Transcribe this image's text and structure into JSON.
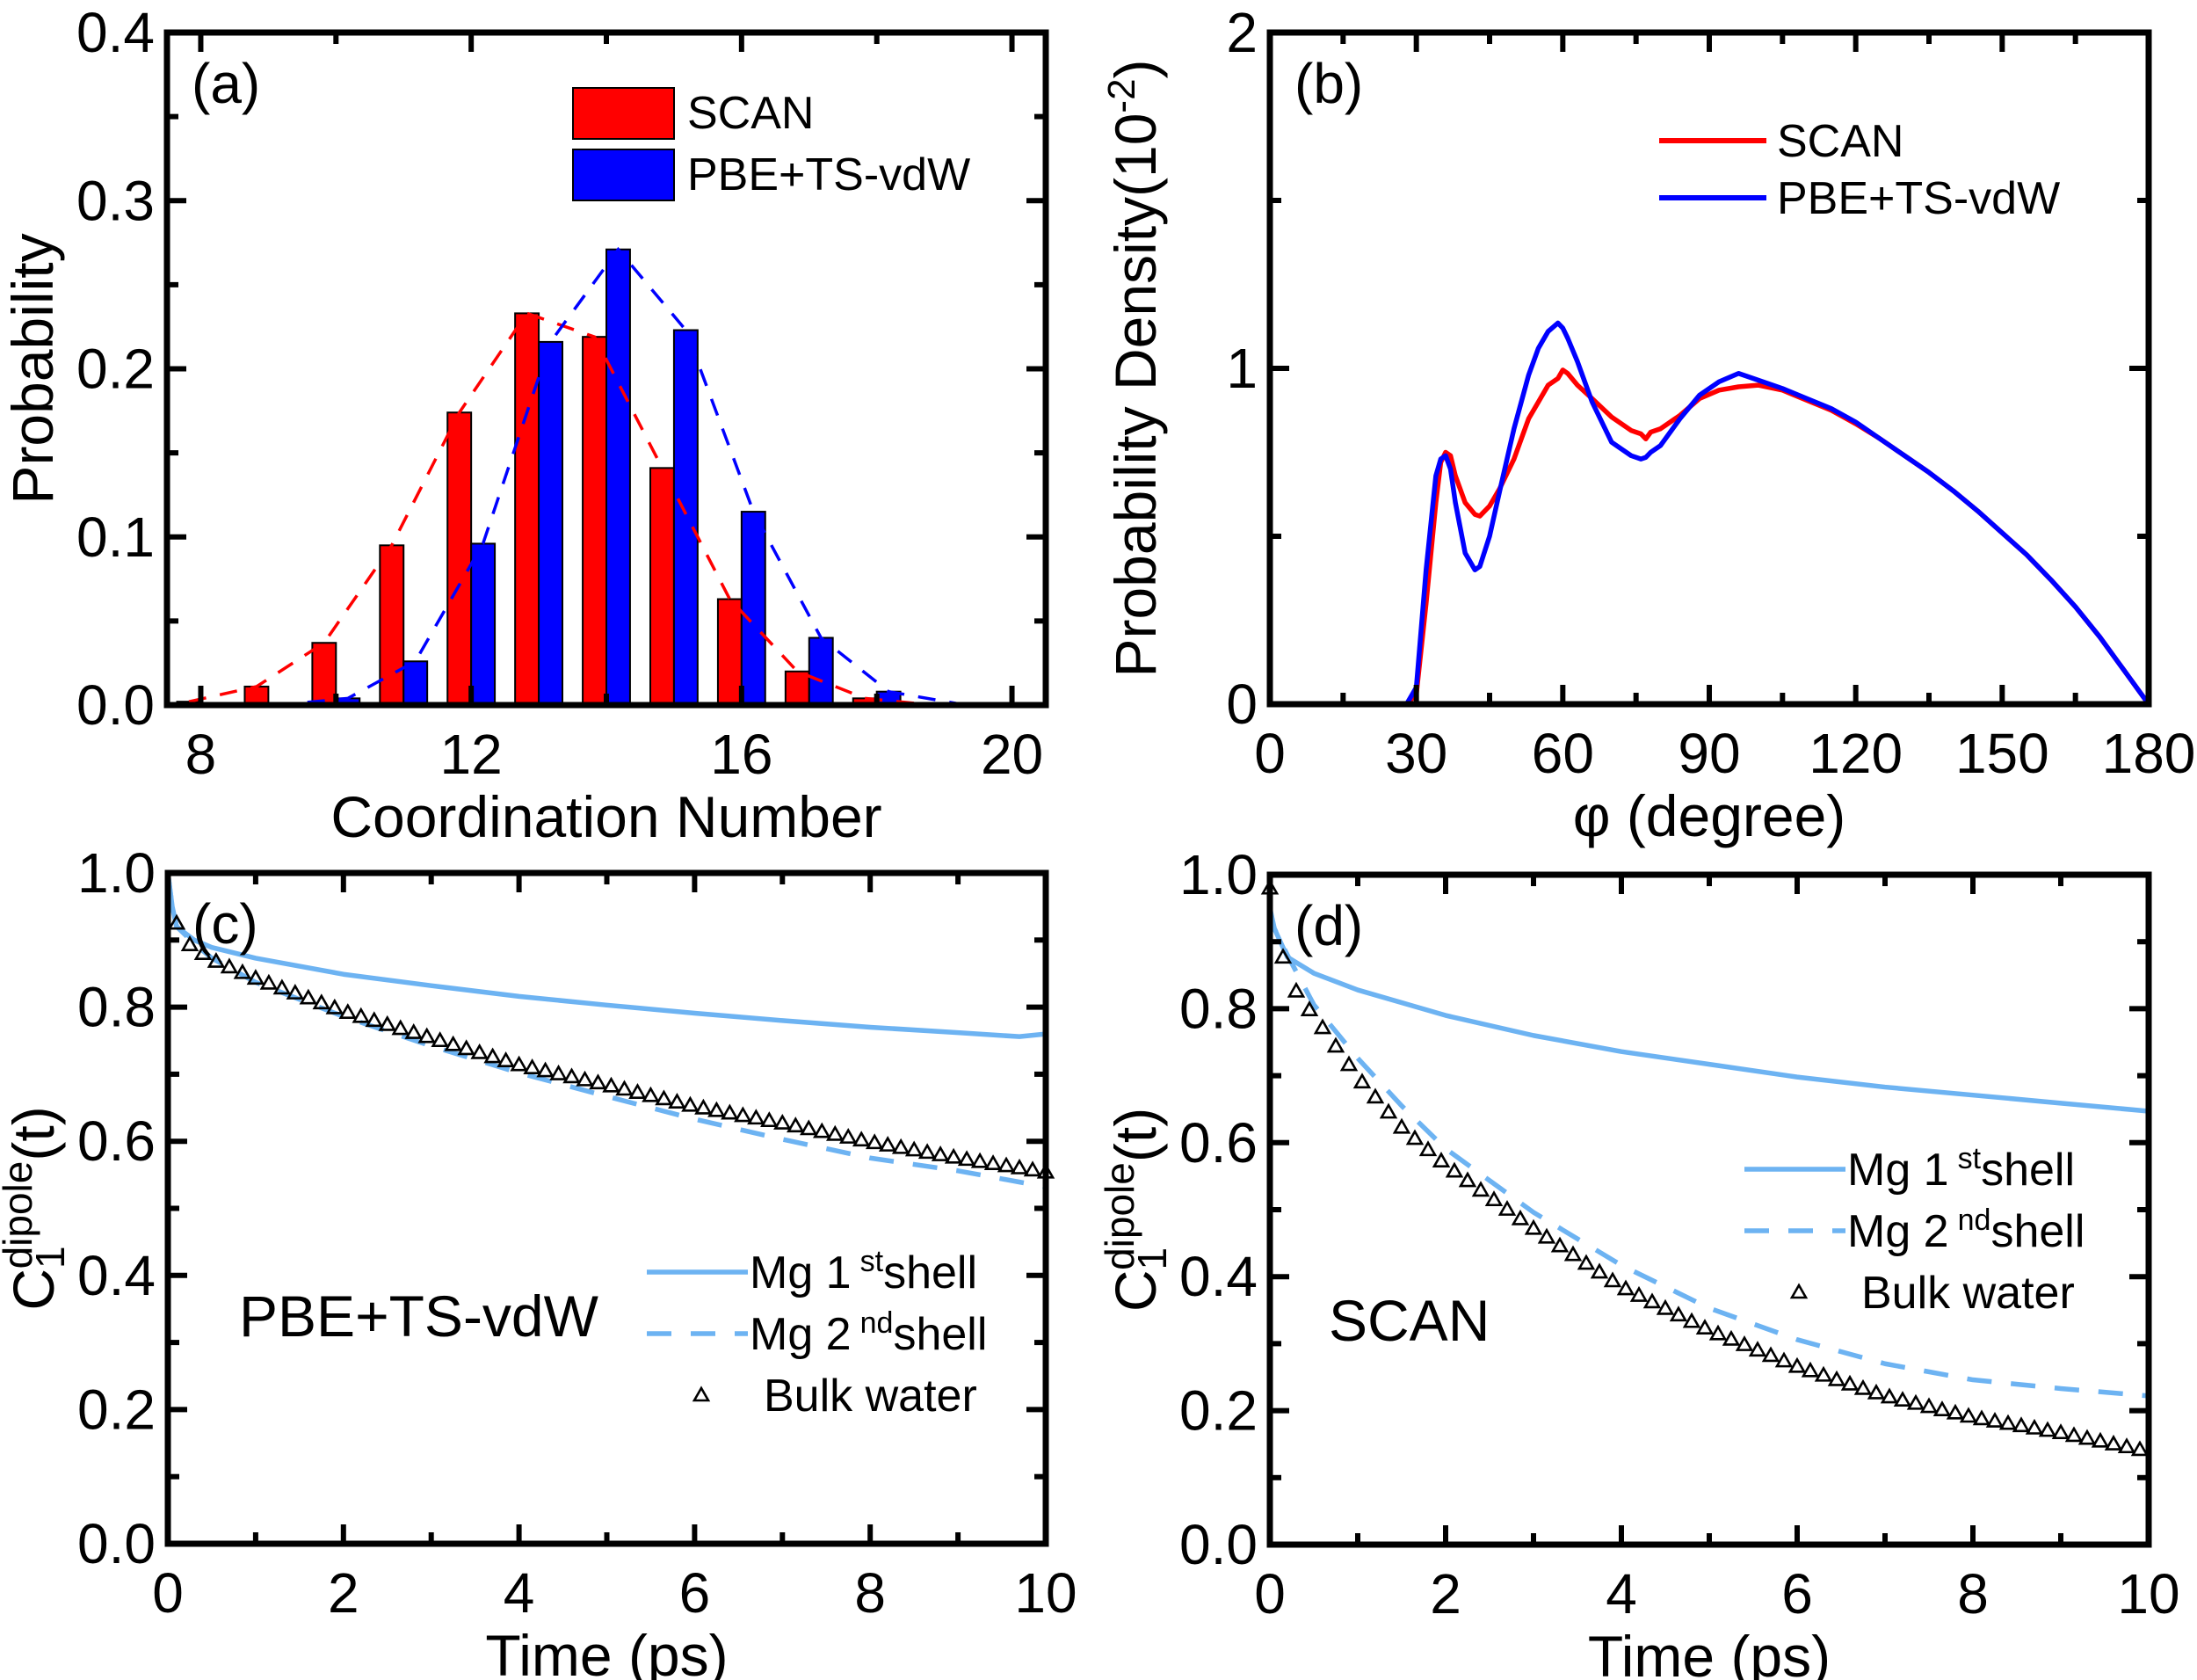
{
  "figure": {
    "panels": [
      "a",
      "b",
      "c",
      "d"
    ]
  },
  "chart_data": [
    {
      "id": "a",
      "type": "bar",
      "panel_label": "(a)",
      "title": "",
      "xlabel": "Coordination Number",
      "ylabel": "Probability",
      "xlim": [
        7.5,
        20.5
      ],
      "ylim": [
        0,
        0.4
      ],
      "xticks": [
        8,
        12,
        16,
        20
      ],
      "xtick_labels": [
        "8",
        "12",
        "16",
        "20"
      ],
      "xminor": [
        10,
        14,
        18
      ],
      "yticks": [
        0,
        0.1,
        0.2,
        0.3,
        0.4
      ],
      "ytick_labels": [
        "0.0",
        "0.1",
        "0.2",
        "0.3",
        "0.4"
      ],
      "yminor": [
        0.05,
        0.15,
        0.25,
        0.35
      ],
      "grid": false,
      "legend_position": "top-right",
      "categories": [
        8,
        9,
        10,
        11,
        12,
        13,
        14,
        15,
        16,
        17,
        18,
        19,
        20
      ],
      "series": [
        {
          "name": "SCAN",
          "color": "#ff0000",
          "values": [
            0.002,
            0.011,
            0.037,
            0.095,
            0.174,
            0.233,
            0.219,
            0.141,
            0.063,
            0.02,
            0.004,
            0.0,
            0.0
          ],
          "fit_line": "dashed"
        },
        {
          "name": "PBE+TS-vdW",
          "color": "#0000ff",
          "values": [
            0.0,
            0.0,
            0.004,
            0.026,
            0.096,
            0.216,
            0.271,
            0.223,
            0.115,
            0.04,
            0.008,
            0.001,
            0.0
          ],
          "fit_line": "dashed"
        }
      ]
    },
    {
      "id": "b",
      "type": "line",
      "panel_label": "(b)",
      "title": "",
      "xlabel": "φ (degree)",
      "ylabel": "Probability Density(10",
      "ylabel_sup": "-2",
      "ylabel_suffix": ")",
      "xlim": [
        0,
        180
      ],
      "ylim": [
        0,
        2
      ],
      "xticks": [
        0,
        30,
        60,
        90,
        120,
        150,
        180
      ],
      "xtick_labels": [
        "0",
        "30",
        "60",
        "90",
        "120",
        "150",
        "180"
      ],
      "xminor": [
        15,
        45,
        75,
        105,
        135,
        165
      ],
      "yticks": [
        0,
        1,
        2
      ],
      "ytick_labels": [
        "0",
        "1",
        "2"
      ],
      "yminor": [
        0.5,
        1.5
      ],
      "grid": false,
      "legend_position": "top-right",
      "series": [
        {
          "name": "SCAN",
          "color": "#ff0000",
          "x": [
            0,
            28,
            30,
            32,
            34,
            35,
            36,
            37,
            38,
            40,
            42,
            43,
            45,
            47,
            50,
            53,
            55,
            57,
            59,
            60,
            61,
            63,
            66,
            70,
            74,
            76,
            77,
            78,
            80,
            84,
            88,
            92,
            96,
            100,
            105,
            110,
            115,
            120,
            125,
            130,
            135,
            140,
            145,
            150,
            155,
            160,
            165,
            170,
            175,
            178,
            180
          ],
          "y": [
            0,
            0,
            0.03,
            0.3,
            0.6,
            0.72,
            0.75,
            0.74,
            0.68,
            0.6,
            0.565,
            0.56,
            0.59,
            0.64,
            0.73,
            0.85,
            0.9,
            0.95,
            0.97,
            0.995,
            0.985,
            0.95,
            0.91,
            0.855,
            0.815,
            0.805,
            0.79,
            0.81,
            0.82,
            0.86,
            0.91,
            0.935,
            0.945,
            0.95,
            0.935,
            0.905,
            0.875,
            0.835,
            0.79,
            0.74,
            0.69,
            0.635,
            0.575,
            0.51,
            0.445,
            0.37,
            0.29,
            0.2,
            0.1,
            0.04,
            0.0
          ]
        },
        {
          "name": "PBE+TS-vdW",
          "color": "#0000ff",
          "x": [
            0,
            28,
            30,
            32,
            34,
            35,
            36,
            37,
            38,
            40,
            42,
            43,
            45,
            47,
            50,
            53,
            55,
            57,
            59,
            60,
            61,
            63,
            66,
            70,
            74,
            76,
            77,
            78,
            80,
            84,
            88,
            92,
            96,
            100,
            105,
            110,
            115,
            120,
            125,
            130,
            135,
            140,
            145,
            150,
            155,
            160,
            165,
            170,
            175,
            178,
            180
          ],
          "y": [
            0,
            0,
            0.05,
            0.4,
            0.68,
            0.73,
            0.74,
            0.7,
            0.6,
            0.45,
            0.4,
            0.41,
            0.5,
            0.63,
            0.82,
            0.98,
            1.06,
            1.11,
            1.135,
            1.12,
            1.09,
            1.02,
            0.9,
            0.78,
            0.74,
            0.73,
            0.735,
            0.75,
            0.77,
            0.85,
            0.92,
            0.96,
            0.985,
            0.965,
            0.94,
            0.91,
            0.88,
            0.84,
            0.79,
            0.74,
            0.69,
            0.635,
            0.575,
            0.51,
            0.445,
            0.37,
            0.29,
            0.2,
            0.1,
            0.04,
            0.0
          ]
        }
      ]
    },
    {
      "id": "c",
      "type": "line",
      "panel_label": "(c)",
      "annotation": "PBE+TS-vdW",
      "title": "",
      "xlabel": "Time (ps)",
      "ylabel": "C",
      "ylabel_sub": "1",
      "ylabel_sup": "dipole",
      "ylabel_suffix": "(t)",
      "xlim": [
        0,
        10
      ],
      "ylim": [
        0,
        1
      ],
      "xticks": [
        0,
        2,
        4,
        6,
        8,
        10
      ],
      "xtick_labels": [
        "0",
        "2",
        "4",
        "6",
        "8",
        "10"
      ],
      "xminor": [
        1,
        3,
        5,
        7,
        9
      ],
      "yticks": [
        0,
        0.2,
        0.4,
        0.6,
        0.8,
        1.0
      ],
      "ytick_labels": [
        "0.0",
        "0.2",
        "0.4",
        "0.6",
        "0.8",
        "1.0"
      ],
      "yminor": [
        0.1,
        0.3,
        0.5,
        0.7,
        0.9
      ],
      "grid": false,
      "legend_position": "center-right",
      "series": [
        {
          "name": "Mg 1",
          "name_sup": "st",
          "name_suffix": "shell",
          "style": "solid",
          "color": "#6db3f2",
          "x": [
            0,
            0.05,
            0.1,
            0.3,
            0.5,
            1,
            2,
            3,
            4,
            5,
            6,
            7,
            8,
            9,
            9.7,
            10
          ],
          "y": [
            1.0,
            0.95,
            0.92,
            0.9,
            0.889,
            0.873,
            0.849,
            0.832,
            0.816,
            0.803,
            0.791,
            0.78,
            0.77,
            0.762,
            0.756,
            0.76
          ]
        },
        {
          "name": "Mg 2",
          "name_sup": "nd",
          "name_suffix": "shell",
          "style": "dashed",
          "color": "#6db3f2",
          "x": [
            0,
            0.05,
            0.1,
            0.3,
            0.5,
            1,
            2,
            3,
            4,
            5,
            6,
            7,
            8,
            9,
            10
          ],
          "y": [
            1.0,
            0.95,
            0.92,
            0.895,
            0.873,
            0.837,
            0.786,
            0.742,
            0.702,
            0.667,
            0.633,
            0.603,
            0.575,
            0.556,
            0.532
          ]
        },
        {
          "name": "Bulk water",
          "style": "markers",
          "marker": "triangle-open",
          "color": "#000000",
          "marker_interval": 0.15,
          "x": [
            0.1,
            0.25,
            0.5,
            1,
            2,
            3,
            4,
            5,
            6,
            7,
            8,
            9,
            10
          ],
          "y": [
            0.925,
            0.893,
            0.871,
            0.843,
            0.794,
            0.754,
            0.714,
            0.684,
            0.652,
            0.627,
            0.599,
            0.575,
            0.554
          ]
        }
      ]
    },
    {
      "id": "d",
      "type": "line",
      "panel_label": "(d)",
      "annotation": "SCAN",
      "title": "",
      "xlabel": "Time (ps)",
      "ylabel": "C",
      "ylabel_sub": "1",
      "ylabel_sup": "dipole",
      "ylabel_suffix": "(t)",
      "xlim": [
        0,
        10
      ],
      "ylim": [
        0,
        1
      ],
      "xticks": [
        0,
        2,
        4,
        6,
        8,
        10
      ],
      "xtick_labels": [
        "0",
        "2",
        "4",
        "6",
        "8",
        "10"
      ],
      "xminor": [
        1,
        3,
        5,
        7,
        9
      ],
      "yticks": [
        0,
        0.2,
        0.4,
        0.6,
        0.8,
        1.0
      ],
      "ytick_labels": [
        "0.0",
        "0.2",
        "0.4",
        "0.6",
        "0.8",
        "1.0"
      ],
      "yminor": [
        0.1,
        0.3,
        0.5,
        0.7,
        0.9
      ],
      "grid": false,
      "legend_position": "center-right",
      "series": [
        {
          "name": "Mg 1",
          "name_sup": "st",
          "name_suffix": "shell",
          "style": "solid",
          "color": "#6db3f2",
          "x": [
            0,
            0.05,
            0.2,
            0.5,
            1,
            2,
            3,
            4,
            5,
            6,
            7,
            8,
            9,
            10
          ],
          "y": [
            0.95,
            0.92,
            0.877,
            0.853,
            0.828,
            0.79,
            0.76,
            0.736,
            0.717,
            0.698,
            0.683,
            0.671,
            0.659,
            0.647
          ]
        },
        {
          "name": "Mg 2",
          "name_sup": "nd",
          "name_suffix": "shell",
          "style": "dashed",
          "color": "#6db3f2",
          "x": [
            0,
            0.05,
            0.2,
            0.5,
            1,
            1.5,
            2,
            3,
            4,
            5,
            6,
            7,
            8,
            9,
            10
          ],
          "y": [
            0.95,
            0.92,
            0.88,
            0.806,
            0.726,
            0.655,
            0.591,
            0.496,
            0.417,
            0.353,
            0.306,
            0.27,
            0.246,
            0.233,
            0.222
          ]
        },
        {
          "name": "Bulk water",
          "style": "markers",
          "marker": "triangle-open",
          "color": "#000000",
          "marker_interval": 0.15,
          "x": [
            0,
            0.16,
            0.32,
            0.5,
            1,
            1.5,
            2,
            3,
            4,
            5,
            6,
            7,
            8,
            9,
            10
          ],
          "y": [
            0.98,
            0.87,
            0.82,
            0.79,
            0.698,
            0.623,
            0.567,
            0.472,
            0.385,
            0.32,
            0.266,
            0.222,
            0.19,
            0.167,
            0.139
          ]
        }
      ]
    }
  ]
}
